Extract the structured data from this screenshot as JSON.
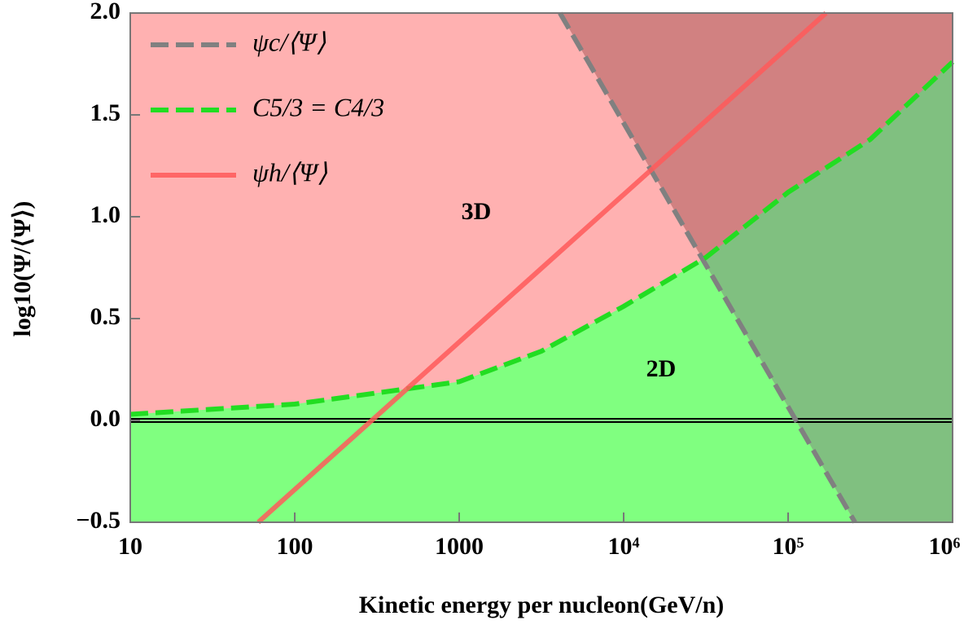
{
  "chart_data": {
    "type": "line",
    "xlabel": "Kinetic energy per nucleon(GeV/n)",
    "ylabel": "log10(Ψ/⟨Ψ⟩)",
    "xlog": true,
    "xlim": [
      10,
      1000000
    ],
    "ylim": [
      -0.5,
      2.0
    ],
    "xticks": [
      10,
      100,
      1000,
      {
        "value": 10000,
        "label": "10⁴"
      },
      {
        "value": 100000,
        "label": "10⁵"
      },
      {
        "value": 1000000,
        "label": "10⁶"
      }
    ],
    "yticks": [
      {
        "value": -0.5,
        "label": "−0.5"
      },
      {
        "value": 0.0,
        "label": "0.0"
      },
      {
        "value": 0.5,
        "label": "0.5"
      },
      {
        "value": 1.0,
        "label": "1.0"
      },
      {
        "value": 1.5,
        "label": "1.5"
      },
      {
        "value": 2.0,
        "label": "2.0"
      }
    ],
    "reference_line": 0,
    "legend": "upper left",
    "series": [
      {
        "name": "ψc/⟨Ψ⟩",
        "color": "#808080",
        "dash": true,
        "x": [
          4100,
          255000
        ],
        "values": [
          2.0,
          -0.5
        ]
      },
      {
        "name": "C5/3 = C4/3",
        "color": "#22dd22",
        "dash": true,
        "x": [
          10,
          100,
          1000,
          3162,
          10000,
          31623,
          100000,
          316228,
          1000000
        ],
        "values": [
          0.03,
          0.08,
          0.19,
          0.34,
          0.56,
          0.8,
          1.12,
          1.38,
          1.76
        ]
      },
      {
        "name": "ψh/⟨Ψ⟩",
        "color": "#ff5a5a",
        "dash": false,
        "x": [
          60,
          170000
        ],
        "values": [
          -0.5,
          2.0
        ]
      }
    ],
    "annotations": [
      "3D",
      "2D"
    ]
  }
}
